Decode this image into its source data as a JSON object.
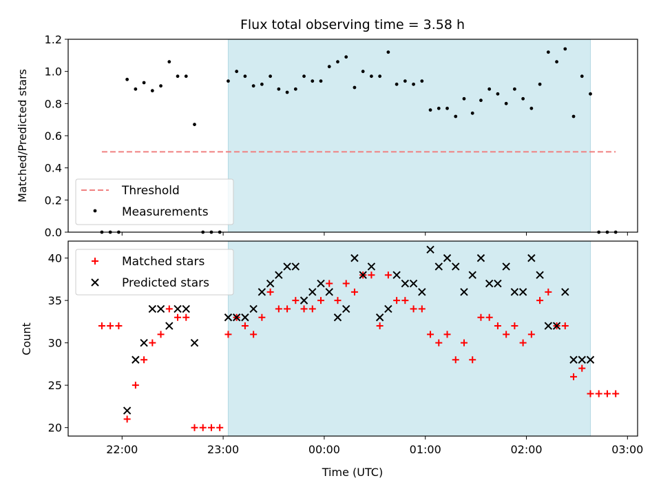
{
  "chart_data": [
    {
      "type": "scatter",
      "title": "Flux total observing time = 3.58 h",
      "xlabel": "",
      "ylabel": "Matched/Predicted stars",
      "ylim": [
        0.0,
        1.2
      ],
      "yticks": [
        "0.0",
        "0.2",
        "0.4",
        "0.6",
        "0.8",
        "1.0",
        "1.2"
      ],
      "xlim": [
        "21:28",
        "03:06"
      ],
      "shaded_interval": [
        "23:03",
        "02:38"
      ],
      "legend_position": "lower-left",
      "series": [
        {
          "name": "Threshold",
          "style": "dashed-line",
          "color": "#f08080",
          "x": [
            "21:48",
            "02:53"
          ],
          "y": [
            0.5,
            0.5
          ]
        },
        {
          "name": "Measurements",
          "style": "dot",
          "color": "#000000",
          "x": [
            "21:48",
            "21:53",
            "21:58",
            "22:03",
            "22:08",
            "22:13",
            "22:18",
            "22:23",
            "22:28",
            "22:33",
            "22:38",
            "22:43",
            "22:48",
            "22:53",
            "22:58",
            "23:03",
            "23:08",
            "23:13",
            "23:18",
            "23:23",
            "23:28",
            "23:33",
            "23:38",
            "23:43",
            "23:48",
            "23:53",
            "23:58",
            "00:03",
            "00:08",
            "00:13",
            "00:18",
            "00:23",
            "00:28",
            "00:33",
            "00:38",
            "00:43",
            "00:48",
            "00:53",
            "00:58",
            "01:03",
            "01:08",
            "01:13",
            "01:18",
            "01:23",
            "01:28",
            "01:33",
            "01:38",
            "01:43",
            "01:48",
            "01:53",
            "01:58",
            "02:03",
            "02:08",
            "02:13",
            "02:18",
            "02:23",
            "02:28",
            "02:33",
            "02:38",
            "02:43",
            "02:48",
            "02:53"
          ],
          "y": [
            0.0,
            0.0,
            0.0,
            0.95,
            0.89,
            0.93,
            0.88,
            0.91,
            1.06,
            0.97,
            0.97,
            0.67,
            0.0,
            0.0,
            0.0,
            0.94,
            1.0,
            0.97,
            0.91,
            0.92,
            0.97,
            0.89,
            0.87,
            0.89,
            0.97,
            0.94,
            0.94,
            1.03,
            1.06,
            1.09,
            0.9,
            1.0,
            0.97,
            0.97,
            1.12,
            0.92,
            0.94,
            0.92,
            0.94,
            0.76,
            0.77,
            0.77,
            0.72,
            0.83,
            0.74,
            0.82,
            0.89,
            0.86,
            0.8,
            0.89,
            0.83,
            0.77,
            0.92,
            1.12,
            1.06,
            1.14,
            0.72,
            0.97,
            0.86,
            0.0,
            0.0,
            0.0
          ]
        }
      ]
    },
    {
      "type": "scatter",
      "title": "",
      "xlabel": "Time (UTC)",
      "ylabel": "Count",
      "ylim": [
        19,
        42
      ],
      "yticks": [
        "20",
        "25",
        "30",
        "35",
        "40"
      ],
      "xlim": [
        "21:28",
        "03:06"
      ],
      "xticks": [
        "22:00",
        "23:00",
        "00:00",
        "01:00",
        "02:00",
        "03:00"
      ],
      "shaded_interval": [
        "23:03",
        "02:38"
      ],
      "legend_position": "upper-left",
      "series": [
        {
          "name": "Matched stars",
          "style": "plus",
          "color": "#ff0000",
          "x": [
            "21:48",
            "21:53",
            "21:58",
            "22:03",
            "22:08",
            "22:13",
            "22:18",
            "22:23",
            "22:28",
            "22:33",
            "22:38",
            "22:43",
            "22:48",
            "22:53",
            "22:58",
            "23:03",
            "23:08",
            "23:13",
            "23:18",
            "23:23",
            "23:28",
            "23:33",
            "23:38",
            "23:43",
            "23:48",
            "23:53",
            "23:58",
            "00:03",
            "00:08",
            "00:13",
            "00:18",
            "00:23",
            "00:28",
            "00:33",
            "00:38",
            "00:43",
            "00:48",
            "00:53",
            "00:58",
            "01:03",
            "01:08",
            "01:13",
            "01:18",
            "01:23",
            "01:28",
            "01:33",
            "01:38",
            "01:43",
            "01:48",
            "01:53",
            "01:58",
            "02:03",
            "02:08",
            "02:13",
            "02:18",
            "02:23",
            "02:28",
            "02:33",
            "02:38",
            "02:43",
            "02:48",
            "02:53"
          ],
          "y": [
            32,
            32,
            32,
            21,
            25,
            28,
            30,
            31,
            34,
            33,
            33,
            20,
            20,
            20,
            20,
            31,
            33,
            32,
            31,
            33,
            36,
            34,
            34,
            35,
            34,
            34,
            35,
            37,
            35,
            37,
            36,
            38,
            38,
            32,
            38,
            35,
            35,
            34,
            34,
            31,
            30,
            31,
            28,
            30,
            28,
            33,
            33,
            32,
            31,
            32,
            30,
            31,
            35,
            36,
            32,
            32,
            26,
            27,
            24,
            24,
            24,
            24
          ]
        },
        {
          "name": "Predicted stars",
          "style": "x",
          "color": "#000000",
          "x": [
            "22:03",
            "22:08",
            "22:13",
            "22:18",
            "22:23",
            "22:28",
            "22:33",
            "22:38",
            "22:43",
            "23:03",
            "23:08",
            "23:13",
            "23:18",
            "23:23",
            "23:28",
            "23:33",
            "23:38",
            "23:43",
            "23:48",
            "23:53",
            "23:58",
            "00:03",
            "00:08",
            "00:13",
            "00:18",
            "00:23",
            "00:28",
            "00:33",
            "00:38",
            "00:43",
            "00:48",
            "00:53",
            "00:58",
            "01:03",
            "01:08",
            "01:13",
            "01:18",
            "01:23",
            "01:28",
            "01:33",
            "01:38",
            "01:43",
            "01:48",
            "01:53",
            "01:58",
            "02:03",
            "02:08",
            "02:13",
            "02:18",
            "02:23",
            "02:28",
            "02:33",
            "02:38"
          ],
          "y": [
            22,
            28,
            30,
            34,
            34,
            32,
            34,
            34,
            30,
            33,
            33,
            33,
            34,
            36,
            37,
            38,
            39,
            39,
            35,
            36,
            37,
            36,
            33,
            34,
            40,
            38,
            39,
            33,
            34,
            38,
            37,
            37,
            36,
            41,
            39,
            40,
            39,
            36,
            38,
            40,
            37,
            37,
            39,
            36,
            36,
            40,
            38,
            32,
            32,
            36,
            28,
            28,
            28
          ]
        }
      ]
    }
  ],
  "colors": {
    "shade": "#d3ebf1",
    "threshold": "#f08080",
    "matched": "#ff0000",
    "predicted": "#000000"
  }
}
